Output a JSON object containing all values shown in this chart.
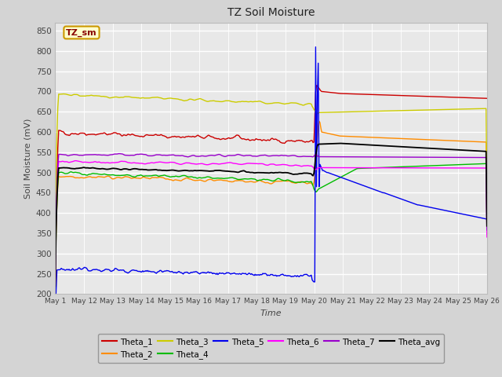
{
  "title": "TZ Soil Moisture",
  "xlabel": "Time",
  "ylabel": "Soil Moisture (mV)",
  "ylim": [
    200,
    870
  ],
  "yticks": [
    200,
    250,
    300,
    350,
    400,
    450,
    500,
    550,
    600,
    650,
    700,
    750,
    800,
    850
  ],
  "bg_color": "#e8e8e8",
  "plot_bg": "#e8e8e8",
  "series_colors": {
    "Theta_1": "#cc0000",
    "Theta_2": "#ff8c00",
    "Theta_3": "#cccc00",
    "Theta_4": "#00bb00",
    "Theta_5": "#0000ee",
    "Theta_6": "#ff00ff",
    "Theta_7": "#9900cc",
    "Theta_avg": "#000000"
  },
  "tick_labels": [
    "May 1",
    "May 12",
    "May 13",
    "May 14",
    "May 15",
    "May 16",
    "May 17",
    "May 18",
    "May 19",
    "May 20",
    "May 21",
    "May 22",
    "May 23",
    "May 24",
    "May 25",
    "May 26"
  ],
  "annotation_label": "TZ_sm",
  "annotation_color": "#880000",
  "annotation_bg": "#ffffcc",
  "annotation_border": "#cc9900"
}
